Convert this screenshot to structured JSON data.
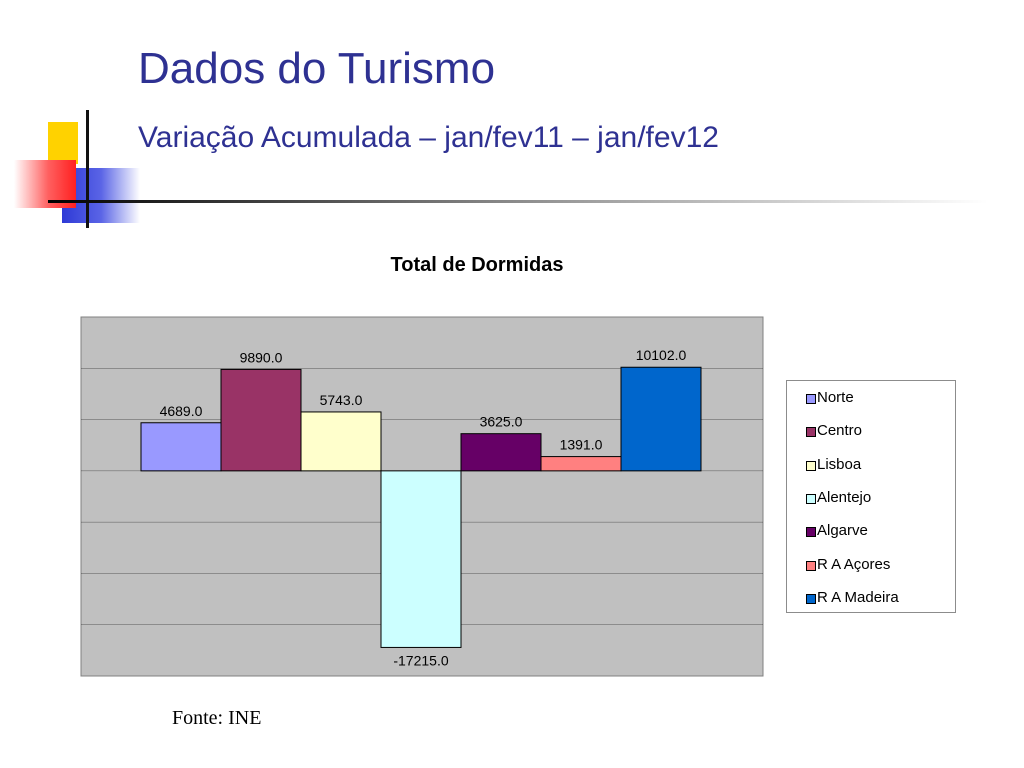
{
  "slide": {
    "title": "Dados do Turismo",
    "subtitle": "Variação Acumulada – jan/fev11 – jan/fev12",
    "source": "Fonte: INE"
  },
  "colors": {
    "heading": "#2e3192",
    "plot_background": "#c0c0c0",
    "deco_yellow": "#ffd200",
    "deco_blue": "#2e3ad6",
    "deco_red": "#ff3a3a"
  },
  "chart_data": {
    "type": "bar",
    "title": "Total de Dormidas",
    "xlabel": "",
    "ylabel": "",
    "ylim": [
      -20000,
      15000
    ],
    "grid": true,
    "legend_position": "right",
    "series": [
      {
        "name": "Norte",
        "value": 4689.0,
        "label": "4689.0",
        "color": "#9999ff"
      },
      {
        "name": "Centro",
        "value": 9890.0,
        "label": "9890.0",
        "color": "#993366"
      },
      {
        "name": "Lisboa",
        "value": 5743.0,
        "label": "5743.0",
        "color": "#ffffcc"
      },
      {
        "name": "Alentejo",
        "value": -17215.0,
        "label": "-17215.0",
        "color": "#ccffff"
      },
      {
        "name": "Algarve",
        "value": 3625.0,
        "label": "3625.0",
        "color": "#660066"
      },
      {
        "name": "R A Açores",
        "value": 1391.0,
        "label": "1391.0",
        "color": "#ff8080"
      },
      {
        "name": "R A Madeira",
        "value": 10102.0,
        "label": "10102.0",
        "color": "#0066cc"
      }
    ]
  }
}
